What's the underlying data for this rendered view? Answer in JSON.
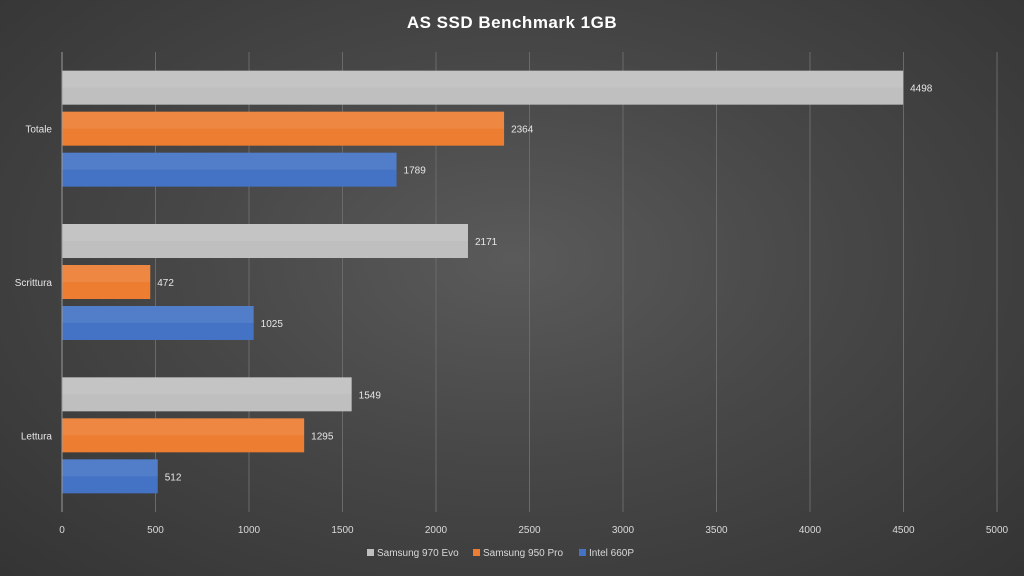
{
  "chart_data": {
    "type": "bar",
    "orientation": "horizontal",
    "title": "AS SSD  Benchmark  1GB",
    "categories": [
      "Totale",
      "Scrittura",
      "Lettura"
    ],
    "series": [
      {
        "name": "Samsung 970 Evo",
        "color": "#bfbfbf",
        "values": [
          4498,
          2171,
          1549
        ]
      },
      {
        "name": "Samsung 950 Pro",
        "color": "#ed7d31",
        "values": [
          2364,
          472,
          1295
        ]
      },
      {
        "name": "Intel 660P",
        "color": "#4472c4",
        "values": [
          1789,
          1025,
          512
        ]
      }
    ],
    "xlim": [
      0,
      5000
    ],
    "xticks": [
      0,
      500,
      1000,
      1500,
      2000,
      2500,
      3000,
      3500,
      4000,
      4500,
      5000
    ],
    "grid": true,
    "legend_position": "bottom"
  }
}
